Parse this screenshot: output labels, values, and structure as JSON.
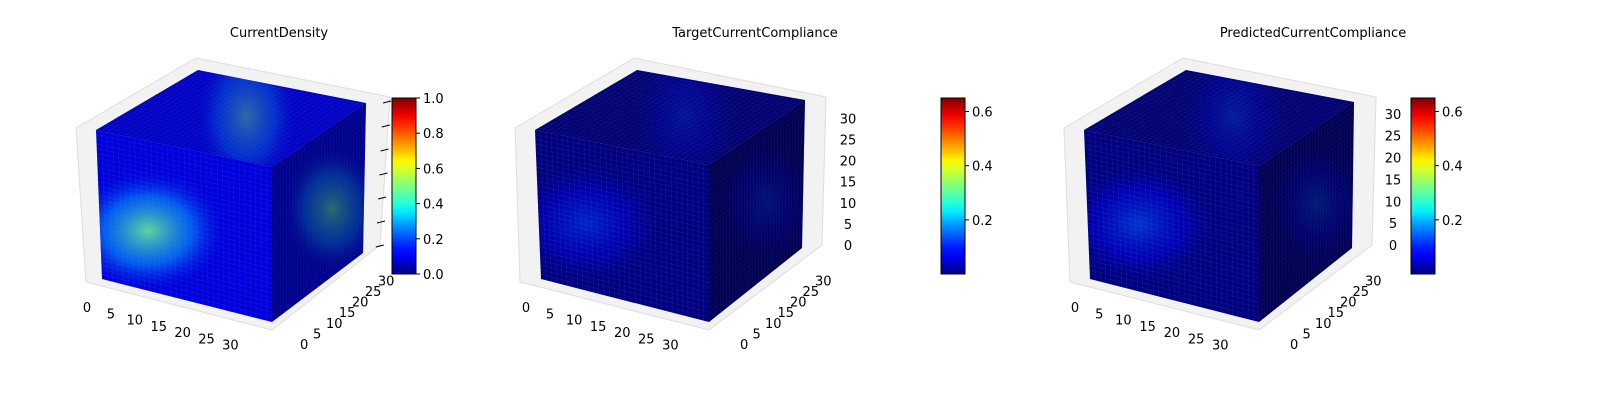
{
  "chart_data": [
    {
      "type": "3d-voxel",
      "title": "CurrentDensity",
      "colormap": "jet",
      "x_ticks": [
        0,
        5,
        10,
        15,
        20,
        25,
        30
      ],
      "y_ticks": [
        0,
        5,
        10,
        15,
        20,
        25,
        30
      ],
      "z_ticks": [],
      "colorbar_ticks": [
        0.0,
        0.2,
        0.4,
        0.6,
        0.8,
        1.0
      ],
      "colorbar_tick_labels": [
        "0.0",
        "0.2",
        "0.4",
        "0.6",
        "0.8",
        "1.0"
      ],
      "colorbar_range": [
        0.0,
        1.0
      ],
      "xlim": [
        0,
        32
      ],
      "ylim": [
        0,
        32
      ],
      "zlim": [
        0,
        32
      ],
      "face_peak_value": 0.48,
      "face_base_value": 0.08
    },
    {
      "type": "3d-voxel",
      "title": "TargetCurrentCompliance",
      "colormap": "jet",
      "x_ticks": [
        0,
        5,
        10,
        15,
        20,
        25,
        30
      ],
      "y_ticks": [
        0,
        5,
        10,
        15,
        20,
        25,
        30
      ],
      "z_ticks": [
        0,
        5,
        10,
        15,
        20,
        25,
        30
      ],
      "colorbar_ticks": [
        0.2,
        0.4,
        0.6
      ],
      "colorbar_tick_labels": [
        "0.2",
        "0.4",
        "0.6"
      ],
      "colorbar_range": [
        0.0,
        0.65
      ],
      "xlim": [
        0,
        32
      ],
      "ylim": [
        0,
        32
      ],
      "zlim": [
        0,
        32
      ],
      "face_peak_value": 0.12,
      "face_base_value": 0.0
    },
    {
      "type": "3d-voxel",
      "title": "PredictedCurrentCompliance",
      "colormap": "jet",
      "x_ticks": [
        0,
        5,
        10,
        15,
        20,
        25,
        30
      ],
      "y_ticks": [
        0,
        5,
        10,
        15,
        20,
        25,
        30
      ],
      "z_ticks": [
        0,
        5,
        10,
        15,
        20,
        25,
        30
      ],
      "colorbar_ticks": [
        0.2,
        0.4,
        0.6
      ],
      "colorbar_tick_labels": [
        "0.2",
        "0.4",
        "0.6"
      ],
      "colorbar_range": [
        0.0,
        0.65
      ],
      "xlim": [
        0,
        32
      ],
      "ylim": [
        0,
        32
      ],
      "zlim": [
        0,
        32
      ],
      "face_peak_value": 0.14,
      "face_base_value": 0.0
    }
  ]
}
